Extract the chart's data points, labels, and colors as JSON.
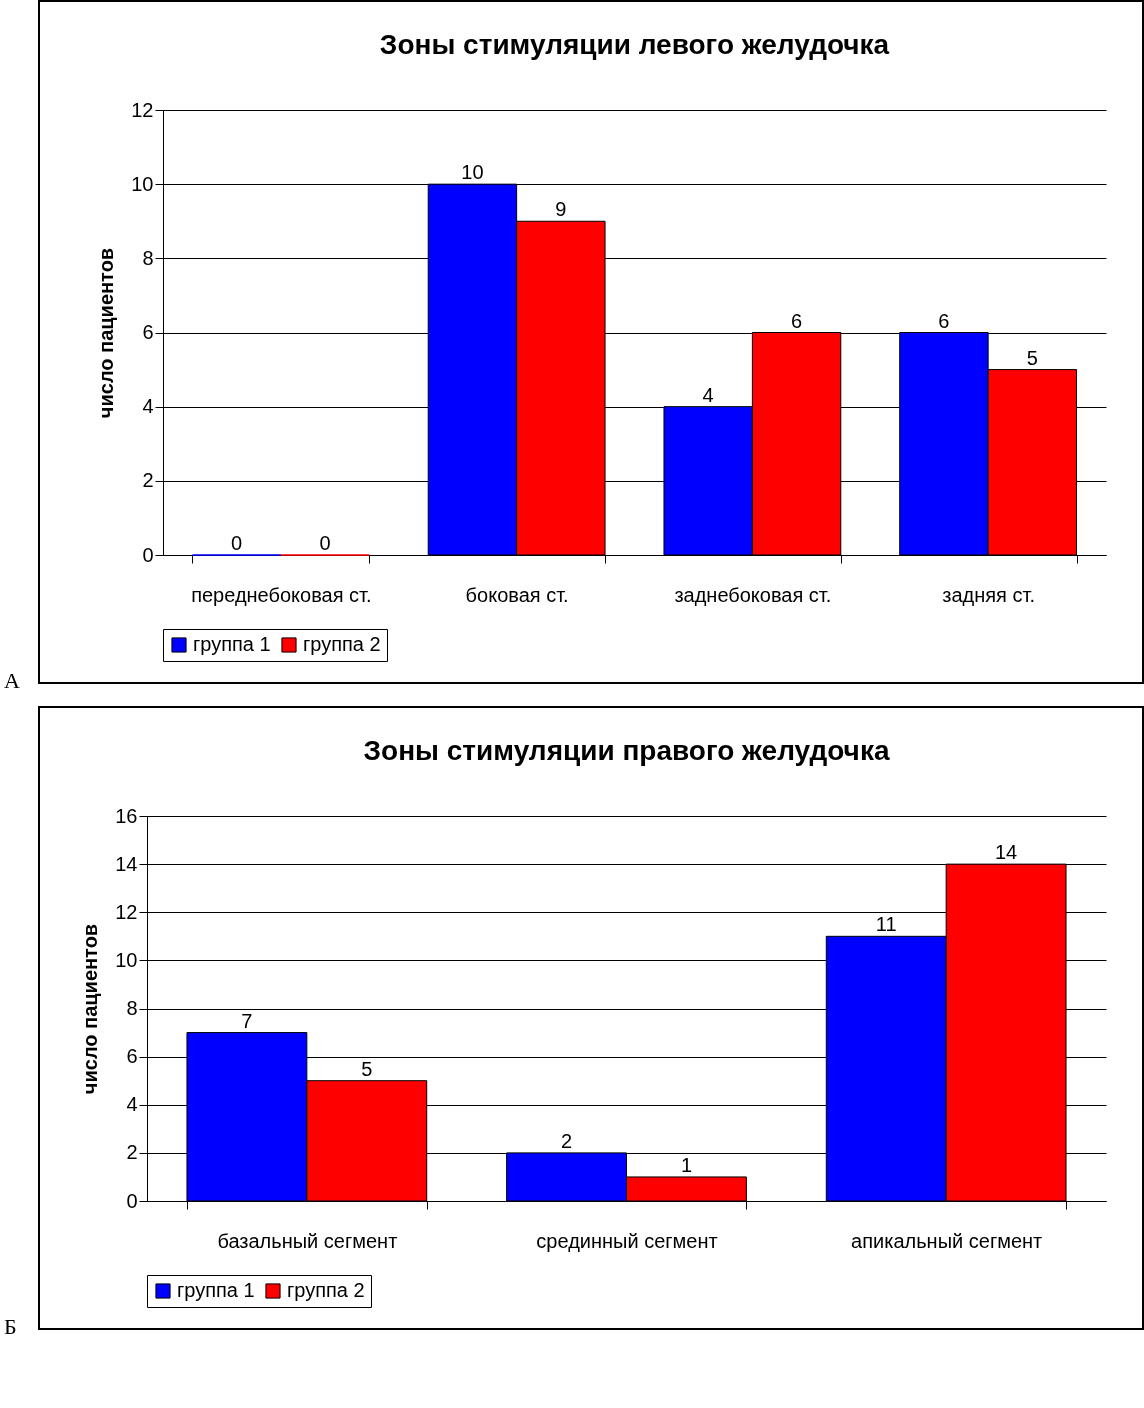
{
  "chart_data": [
    {
      "type": "bar",
      "title": "Зоны стимуляции левого желудочка",
      "ylabel": "число пациентов",
      "categories": [
        "переднебоковая ст.",
        "боковая ст.",
        "заднебоковая ст.",
        "задняя ст."
      ],
      "series": [
        {
          "name": "группа 1",
          "color": "#0000ff",
          "values": [
            0,
            10,
            4,
            6
          ]
        },
        {
          "name": "группа 2",
          "color": "#ff0000",
          "values": [
            0,
            9,
            6,
            5
          ]
        }
      ],
      "ylim": [
        0,
        12
      ],
      "yticks": [
        0,
        2,
        4,
        6,
        8,
        10,
        12
      ],
      "grid": "y",
      "legend": "bottom",
      "data_labels": true,
      "annotations": [
        "А"
      ]
    },
    {
      "type": "bar",
      "title": "Зоны стимуляции правого желудочка",
      "ylabel": "число пациентов",
      "categories": [
        "базальный сегмент",
        "срединный сегмент",
        "апикальный сегмент"
      ],
      "series": [
        {
          "name": "группа 1",
          "color": "#0000ff",
          "values": [
            7,
            2,
            11
          ]
        },
        {
          "name": "группа 2",
          "color": "#ff0000",
          "values": [
            5,
            1,
            14
          ]
        }
      ],
      "ylim": [
        0,
        16
      ],
      "yticks": [
        0,
        2,
        4,
        6,
        8,
        10,
        12,
        14,
        16
      ],
      "grid": "y",
      "legend": "bottom",
      "data_labels": true,
      "annotations": [
        "Б"
      ]
    }
  ]
}
